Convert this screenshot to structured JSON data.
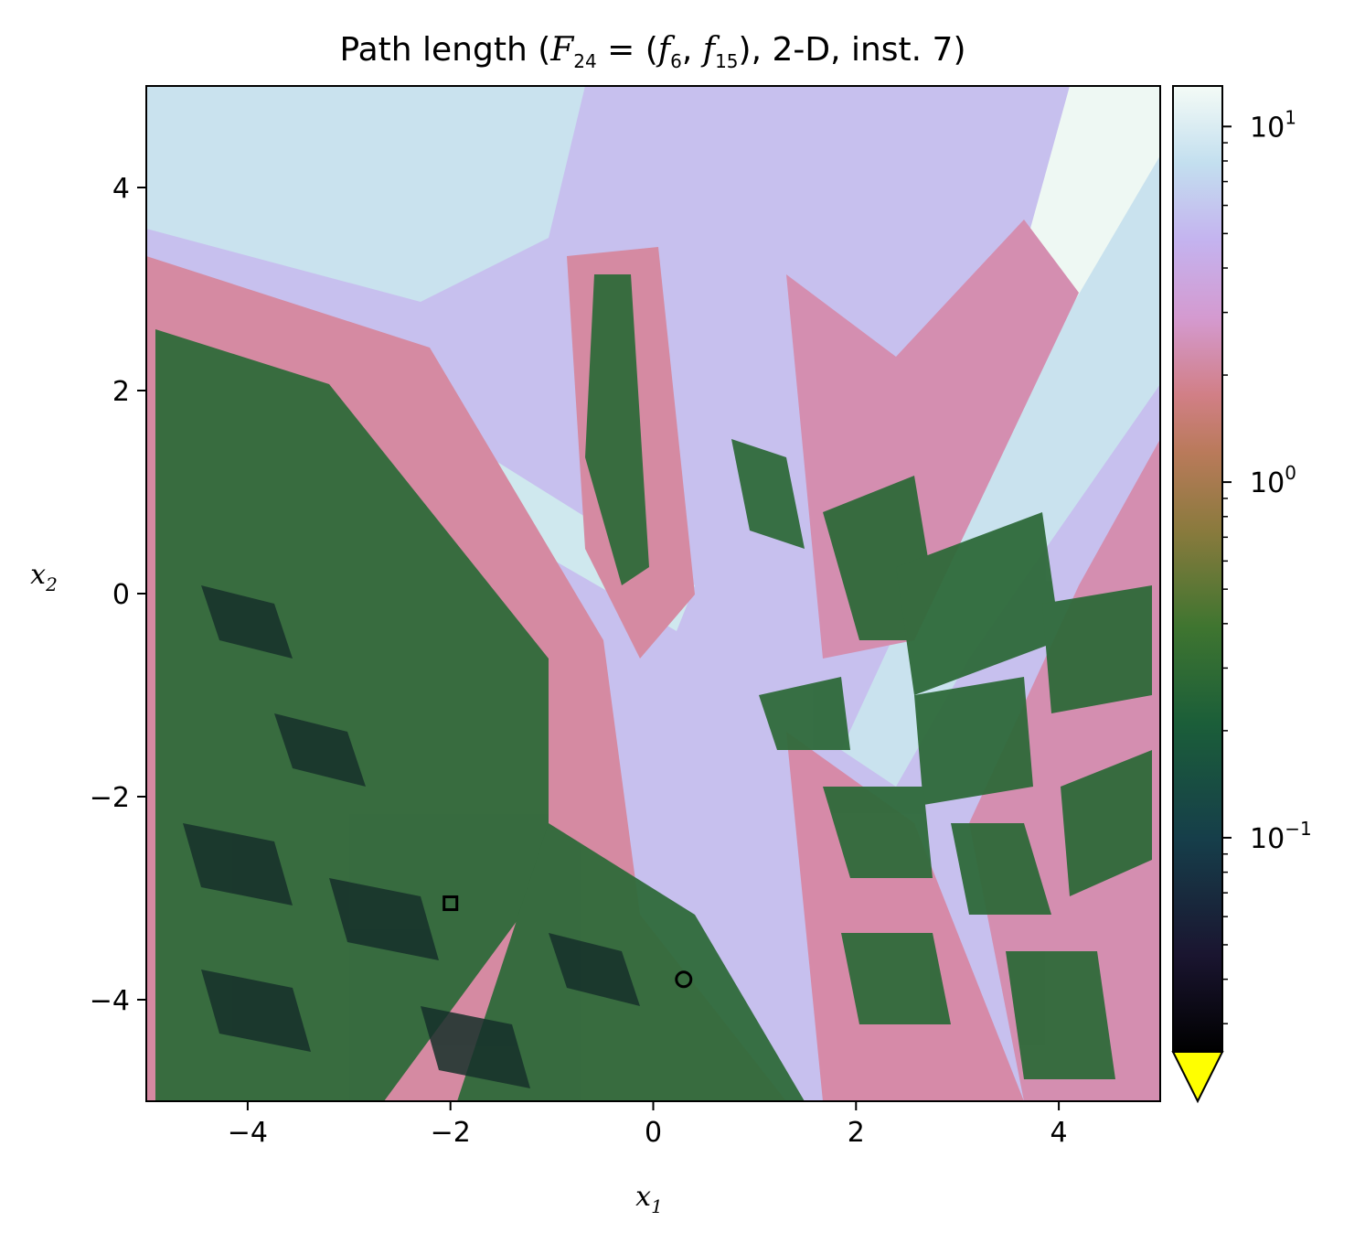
{
  "chart_data": {
    "type": "heatmap",
    "title_prefix": "Path length (",
    "title_F": "F",
    "title_F_sub": "24",
    "title_eq": " = (",
    "title_f1": "f",
    "title_f1_sub": "6",
    "title_comma": ", ",
    "title_f2": "f",
    "title_f2_sub": "15",
    "title_suffix": "), 2-D, inst. 7)",
    "xlabel": "x",
    "xlabel_sub": "1",
    "ylabel": "x",
    "ylabel_sub": "2",
    "xlim": [
      -5,
      5
    ],
    "ylim": [
      -5,
      5
    ],
    "x_ticks": [
      -4,
      -2,
      0,
      2,
      4
    ],
    "y_ticks": [
      -4,
      -2,
      0,
      2,
      4
    ],
    "x_tick_labels": [
      "−4",
      "−2",
      "0",
      "2",
      "4"
    ],
    "y_tick_labels": [
      "−4",
      "−2",
      "0",
      "2",
      "4"
    ],
    "colorbar": {
      "scale": "log",
      "range": [
        0.025,
        13
      ],
      "major_ticks": [
        0.1,
        1,
        10
      ],
      "tick_base": [
        "10",
        "10",
        "10"
      ],
      "tick_exp": [
        "−1",
        "0",
        "1"
      ],
      "colormap": "cubehelix",
      "extend": "min",
      "under_color": "#ffff00"
    },
    "markers": [
      {
        "shape": "square",
        "x": -2.0,
        "y": -3.05
      },
      {
        "shape": "circle",
        "x": 0.3,
        "y": -3.8
      }
    ],
    "grid": false
  }
}
